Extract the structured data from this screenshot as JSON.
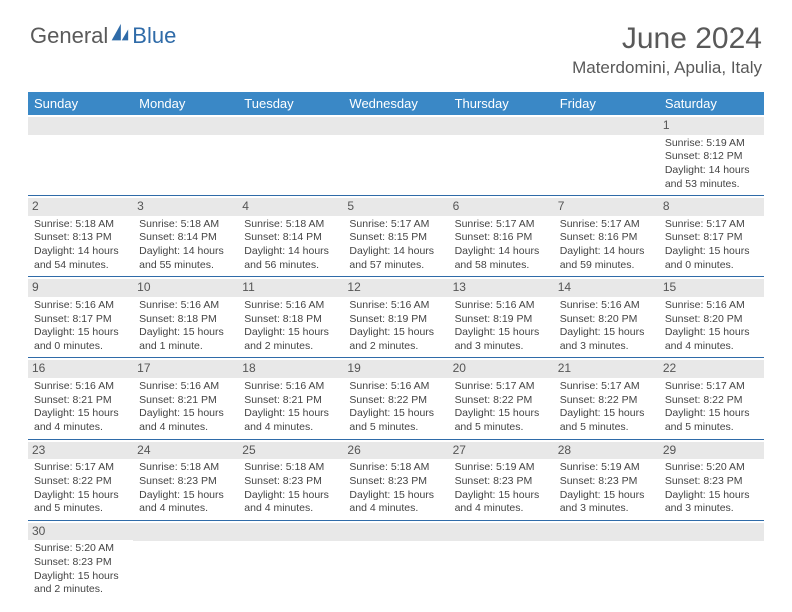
{
  "logo": {
    "part1": "General",
    "part2": "Blue"
  },
  "title": "June 2024",
  "location": "Materdomini, Apulia, Italy",
  "colors": {
    "header_bg": "#3a88c6",
    "daynum_bg": "#e8e8e8",
    "border": "#2f6ba8",
    "text": "#444444",
    "title_text": "#595959"
  },
  "weekdays": [
    "Sunday",
    "Monday",
    "Tuesday",
    "Wednesday",
    "Thursday",
    "Friday",
    "Saturday"
  ],
  "weeks": [
    [
      null,
      null,
      null,
      null,
      null,
      null,
      {
        "n": "1",
        "sr": "Sunrise: 5:19 AM",
        "ss": "Sunset: 8:12 PM",
        "dl": "Daylight: 14 hours and 53 minutes."
      }
    ],
    [
      {
        "n": "2",
        "sr": "Sunrise: 5:18 AM",
        "ss": "Sunset: 8:13 PM",
        "dl": "Daylight: 14 hours and 54 minutes."
      },
      {
        "n": "3",
        "sr": "Sunrise: 5:18 AM",
        "ss": "Sunset: 8:14 PM",
        "dl": "Daylight: 14 hours and 55 minutes."
      },
      {
        "n": "4",
        "sr": "Sunrise: 5:18 AM",
        "ss": "Sunset: 8:14 PM",
        "dl": "Daylight: 14 hours and 56 minutes."
      },
      {
        "n": "5",
        "sr": "Sunrise: 5:17 AM",
        "ss": "Sunset: 8:15 PM",
        "dl": "Daylight: 14 hours and 57 minutes."
      },
      {
        "n": "6",
        "sr": "Sunrise: 5:17 AM",
        "ss": "Sunset: 8:16 PM",
        "dl": "Daylight: 14 hours and 58 minutes."
      },
      {
        "n": "7",
        "sr": "Sunrise: 5:17 AM",
        "ss": "Sunset: 8:16 PM",
        "dl": "Daylight: 14 hours and 59 minutes."
      },
      {
        "n": "8",
        "sr": "Sunrise: 5:17 AM",
        "ss": "Sunset: 8:17 PM",
        "dl": "Daylight: 15 hours and 0 minutes."
      }
    ],
    [
      {
        "n": "9",
        "sr": "Sunrise: 5:16 AM",
        "ss": "Sunset: 8:17 PM",
        "dl": "Daylight: 15 hours and 0 minutes."
      },
      {
        "n": "10",
        "sr": "Sunrise: 5:16 AM",
        "ss": "Sunset: 8:18 PM",
        "dl": "Daylight: 15 hours and 1 minute."
      },
      {
        "n": "11",
        "sr": "Sunrise: 5:16 AM",
        "ss": "Sunset: 8:18 PM",
        "dl": "Daylight: 15 hours and 2 minutes."
      },
      {
        "n": "12",
        "sr": "Sunrise: 5:16 AM",
        "ss": "Sunset: 8:19 PM",
        "dl": "Daylight: 15 hours and 2 minutes."
      },
      {
        "n": "13",
        "sr": "Sunrise: 5:16 AM",
        "ss": "Sunset: 8:19 PM",
        "dl": "Daylight: 15 hours and 3 minutes."
      },
      {
        "n": "14",
        "sr": "Sunrise: 5:16 AM",
        "ss": "Sunset: 8:20 PM",
        "dl": "Daylight: 15 hours and 3 minutes."
      },
      {
        "n": "15",
        "sr": "Sunrise: 5:16 AM",
        "ss": "Sunset: 8:20 PM",
        "dl": "Daylight: 15 hours and 4 minutes."
      }
    ],
    [
      {
        "n": "16",
        "sr": "Sunrise: 5:16 AM",
        "ss": "Sunset: 8:21 PM",
        "dl": "Daylight: 15 hours and 4 minutes."
      },
      {
        "n": "17",
        "sr": "Sunrise: 5:16 AM",
        "ss": "Sunset: 8:21 PM",
        "dl": "Daylight: 15 hours and 4 minutes."
      },
      {
        "n": "18",
        "sr": "Sunrise: 5:16 AM",
        "ss": "Sunset: 8:21 PM",
        "dl": "Daylight: 15 hours and 4 minutes."
      },
      {
        "n": "19",
        "sr": "Sunrise: 5:16 AM",
        "ss": "Sunset: 8:22 PM",
        "dl": "Daylight: 15 hours and 5 minutes."
      },
      {
        "n": "20",
        "sr": "Sunrise: 5:17 AM",
        "ss": "Sunset: 8:22 PM",
        "dl": "Daylight: 15 hours and 5 minutes."
      },
      {
        "n": "21",
        "sr": "Sunrise: 5:17 AM",
        "ss": "Sunset: 8:22 PM",
        "dl": "Daylight: 15 hours and 5 minutes."
      },
      {
        "n": "22",
        "sr": "Sunrise: 5:17 AM",
        "ss": "Sunset: 8:22 PM",
        "dl": "Daylight: 15 hours and 5 minutes."
      }
    ],
    [
      {
        "n": "23",
        "sr": "Sunrise: 5:17 AM",
        "ss": "Sunset: 8:22 PM",
        "dl": "Daylight: 15 hours and 5 minutes."
      },
      {
        "n": "24",
        "sr": "Sunrise: 5:18 AM",
        "ss": "Sunset: 8:23 PM",
        "dl": "Daylight: 15 hours and 4 minutes."
      },
      {
        "n": "25",
        "sr": "Sunrise: 5:18 AM",
        "ss": "Sunset: 8:23 PM",
        "dl": "Daylight: 15 hours and 4 minutes."
      },
      {
        "n": "26",
        "sr": "Sunrise: 5:18 AM",
        "ss": "Sunset: 8:23 PM",
        "dl": "Daylight: 15 hours and 4 minutes."
      },
      {
        "n": "27",
        "sr": "Sunrise: 5:19 AM",
        "ss": "Sunset: 8:23 PM",
        "dl": "Daylight: 15 hours and 4 minutes."
      },
      {
        "n": "28",
        "sr": "Sunrise: 5:19 AM",
        "ss": "Sunset: 8:23 PM",
        "dl": "Daylight: 15 hours and 3 minutes."
      },
      {
        "n": "29",
        "sr": "Sunrise: 5:20 AM",
        "ss": "Sunset: 8:23 PM",
        "dl": "Daylight: 15 hours and 3 minutes."
      }
    ],
    [
      {
        "n": "30",
        "sr": "Sunrise: 5:20 AM",
        "ss": "Sunset: 8:23 PM",
        "dl": "Daylight: 15 hours and 2 minutes."
      },
      null,
      null,
      null,
      null,
      null,
      null
    ]
  ]
}
